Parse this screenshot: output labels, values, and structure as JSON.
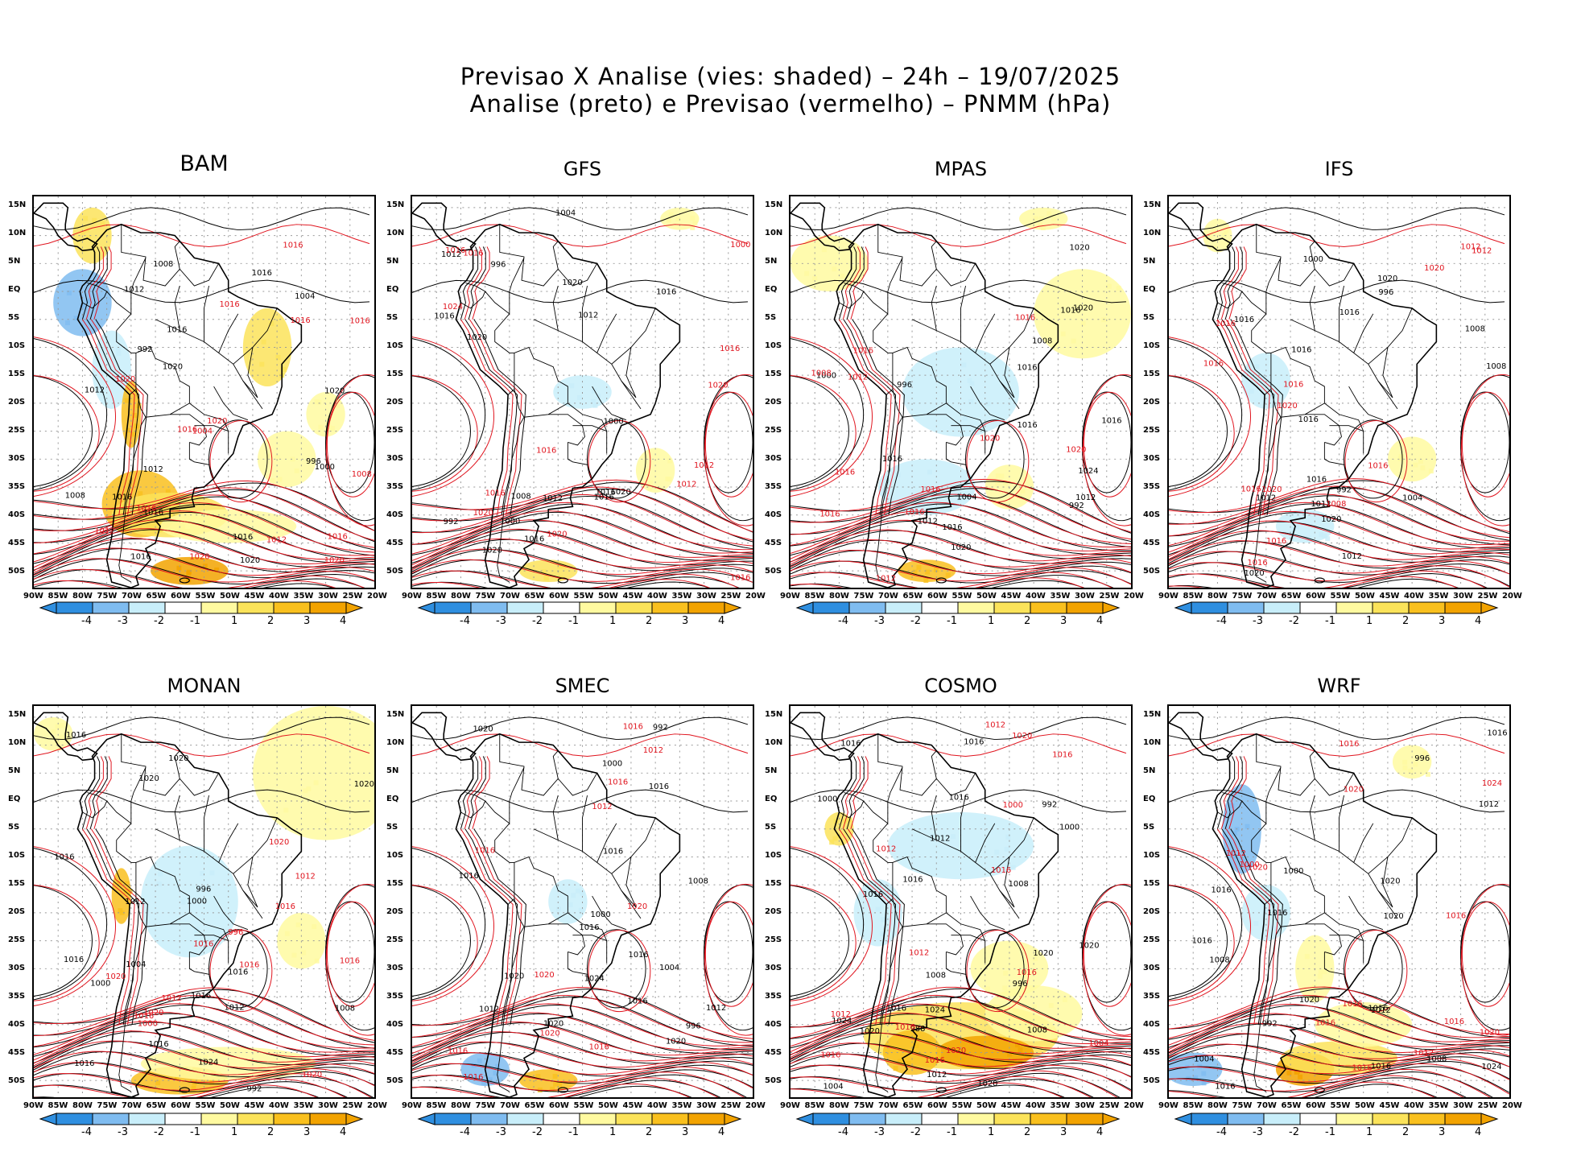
{
  "header": {
    "line1": "Previsao X Analise (vies: shaded) – 24h – 19/07/2025",
    "line2": "Analise (preto) e Previsao (vermelho) – PNMM (hPa)"
  },
  "colors": {
    "analysis_contours": "#000000",
    "forecast_contours": "#e0141e",
    "bias_scale": [
      "#2f8fe0",
      "#7fbcf0",
      "#c8eefa",
      "#ffffff",
      "#fffaa0",
      "#fbe35a",
      "#f9c01e",
      "#f2a300"
    ]
  },
  "lat_ticks": [
    "15N",
    "10N",
    "5N",
    "EQ",
    "5S",
    "10S",
    "15S",
    "20S",
    "25S",
    "30S",
    "35S",
    "40S",
    "45S",
    "50S"
  ],
  "lon_ticks": [
    "90W",
    "85W",
    "80W",
    "75W",
    "70W",
    "65W",
    "60W",
    "55W",
    "50W",
    "45W",
    "40W",
    "35W",
    "30W",
    "25W",
    "20W"
  ],
  "colorbar_labels": [
    "-4",
    "-3",
    "-2",
    "-1",
    "1",
    "2",
    "3",
    "4"
  ],
  "panels": [
    {
      "name": "BAM",
      "labels": {
        "black": [
          "1008",
          "1012",
          "1016",
          "1016",
          "1016",
          "1020",
          "1020",
          "1016",
          "1020",
          "1016",
          "1012",
          "1008",
          "1004",
          "1016",
          "1012",
          "996",
          "992",
          "1000"
        ],
        "red": [
          "1016",
          "1012",
          "1016",
          "1012",
          "1016",
          "1020",
          "1020",
          "1020",
          "1016",
          "1016",
          "1020",
          "1008",
          "1004",
          "1016",
          "1016"
        ]
      }
    },
    {
      "name": "GFS",
      "labels": {
        "black": [
          "1016",
          "1012",
          "1016",
          "1016",
          "1012",
          "1016",
          "1020",
          "1020",
          "1020",
          "1016",
          "1012",
          "1008",
          "1004",
          "1000",
          "996",
          "992",
          "1000",
          "1020"
        ],
        "red": [
          "1016",
          "1012",
          "1016",
          "1016",
          "1020",
          "1020",
          "1024",
          "1016",
          "1016",
          "1020",
          "1016",
          "1012",
          "1000"
        ]
      }
    },
    {
      "name": "MPAS",
      "labels": {
        "black": [
          "1016",
          "1016",
          "1016",
          "1012",
          "1016",
          "1020",
          "1020",
          "1024",
          "1016",
          "1012",
          "1008",
          "1004",
          "1000",
          "992",
          "996",
          "1016",
          "1020"
        ],
        "red": [
          "1016",
          "1016",
          "1016",
          "1012",
          "1020",
          "1016",
          "1020",
          "1016",
          "1012",
          "1016",
          "1008"
        ]
      }
    },
    {
      "name": "IFS",
      "labels": {
        "black": [
          "1016",
          "1012",
          "1008",
          "1012",
          "1016",
          "1016",
          "1020",
          "1020",
          "1016",
          "1012",
          "1008",
          "1004",
          "996",
          "992",
          "1000",
          "1020",
          "1016"
        ],
        "red": [
          "1016",
          "1016",
          "1012",
          "1016",
          "1020",
          "1020",
          "1016",
          "1016",
          "1020",
          "1016",
          "1012",
          "1008",
          "1016"
        ]
      }
    },
    {
      "name": "MONAN",
      "labels": {
        "black": [
          "1016",
          "1016",
          "1016",
          "1012",
          "1020",
          "1016",
          "1020",
          "1024",
          "1016",
          "1016",
          "1012",
          "1008",
          "1004",
          "1000",
          "996",
          "992",
          "1000",
          "1016",
          "1020"
        ],
        "red": [
          "1016",
          "1012",
          "1016",
          "1020",
          "1020",
          "1020",
          "1016",
          "1016",
          "1016",
          "1020",
          "1012",
          "1000",
          "996"
        ]
      }
    },
    {
      "name": "SMEC",
      "labels": {
        "black": [
          "1016",
          "1016",
          "1016",
          "1012",
          "1016",
          "1020",
          "1020",
          "1020",
          "1016",
          "1024",
          "1016",
          "1012",
          "1008",
          "1004",
          "1000",
          "996",
          "992",
          "1020",
          "1000"
        ],
        "red": [
          "1016",
          "1016",
          "1012",
          "1020",
          "1020",
          "1016",
          "1016",
          "1020",
          "1016",
          "1016",
          "1012"
        ]
      }
    },
    {
      "name": "COSMO",
      "labels": {
        "black": [
          "1012",
          "1008",
          "1016",
          "1016",
          "1016",
          "1020",
          "1020",
          "1024",
          "1016",
          "1020",
          "1020",
          "1024",
          "1016",
          "1012",
          "1008",
          "1004",
          "1000",
          "996",
          "992",
          "988",
          "1016",
          "1008",
          "1000"
        ],
        "red": [
          "1012",
          "1016",
          "1012",
          "1016",
          "1012",
          "1016",
          "1020",
          "1020",
          "1016",
          "1016",
          "1016",
          "1004",
          "1000",
          "1012"
        ]
      }
    },
    {
      "name": "WRF",
      "labels": {
        "black": [
          "1016",
          "1008",
          "1016",
          "1016",
          "1012",
          "1016",
          "1020",
          "1020",
          "1020",
          "1016",
          "1016",
          "1012",
          "1008",
          "1004",
          "996",
          "992",
          "1000",
          "1024",
          "1016"
        ],
        "red": [
          "1016",
          "1016",
          "1012",
          "1016",
          "1020",
          "1020",
          "1020",
          "1016",
          "1024",
          "1016",
          "1016",
          "1012",
          "1000"
        ]
      }
    }
  ]
}
